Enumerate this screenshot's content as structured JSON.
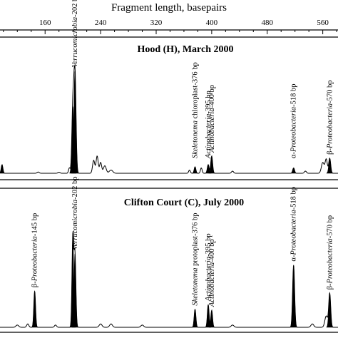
{
  "chart_data": {
    "type": "line",
    "xlabel": "Fragment length, basepairs",
    "xlim": [
      93,
      584
    ],
    "xticks": [
      160,
      240,
      320,
      400,
      480,
      560
    ],
    "ylabel": "",
    "panels": [
      {
        "title": "Hood (H), March 2000",
        "baseline": 0,
        "peaks": [
          {
            "x": 98,
            "h": 0.08,
            "w": 1.2,
            "fill": true
          },
          {
            "x": 150,
            "h": 0.012,
            "w": 1.5,
            "fill": false
          },
          {
            "x": 180,
            "h": 0.01,
            "w": 1.5,
            "fill": false
          },
          {
            "x": 195,
            "h": 0.05,
            "w": 1.2,
            "fill": false
          },
          {
            "x": 200,
            "h": 0.62,
            "w": 1.4,
            "fill": true
          },
          {
            "x": 203,
            "h": 0.95,
            "w": 1.5,
            "fill": true
          },
          {
            "x": 230,
            "h": 0.12,
            "w": 1.6,
            "fill": false
          },
          {
            "x": 235,
            "h": 0.16,
            "w": 1.5,
            "fill": false
          },
          {
            "x": 240,
            "h": 0.1,
            "w": 1.5,
            "fill": false
          },
          {
            "x": 246,
            "h": 0.07,
            "w": 2.0,
            "fill": false
          },
          {
            "x": 255,
            "h": 0.03,
            "w": 2.5,
            "fill": false
          },
          {
            "x": 368,
            "h": 0.03,
            "w": 1.2,
            "fill": false
          },
          {
            "x": 376,
            "h": 0.06,
            "w": 1.2,
            "fill": true
          },
          {
            "x": 385,
            "h": 0.05,
            "w": 1.2,
            "fill": false
          },
          {
            "x": 395,
            "h": 0.08,
            "w": 1.3,
            "fill": true
          },
          {
            "x": 400,
            "h": 0.16,
            "w": 1.3,
            "fill": true
          },
          {
            "x": 430,
            "h": 0.02,
            "w": 1.5,
            "fill": false
          },
          {
            "x": 518,
            "h": 0.05,
            "w": 1.3,
            "fill": true
          },
          {
            "x": 535,
            "h": 0.02,
            "w": 1.5,
            "fill": false
          },
          {
            "x": 560,
            "h": 0.1,
            "w": 2.0,
            "fill": false
          },
          {
            "x": 565,
            "h": 0.13,
            "w": 1.6,
            "fill": false
          },
          {
            "x": 570,
            "h": 0.14,
            "w": 1.4,
            "fill": true
          }
        ],
        "labels": [
          {
            "x": 203,
            "parts": [
              {
                "t": "Verrucomicrobia",
                "i": true
              },
              {
                "t": "-202 bp",
                "i": false
              }
            ]
          },
          {
            "x": 376,
            "parts": [
              {
                "t": "Skeletonema",
                "i": true
              },
              {
                "t": " chloroplast-376 bp",
                "i": false
              }
            ]
          },
          {
            "x": 395,
            "parts": [
              {
                "t": "Actinobacteria",
                "i": true
              },
              {
                "t": "-395 bp",
                "i": false
              }
            ]
          },
          {
            "x": 400,
            "parts": [
              {
                "t": "Actinobacteria",
                "i": true
              },
              {
                "t": "-400 bp",
                "i": false
              }
            ]
          },
          {
            "x": 518,
            "parts": [
              {
                "t": "α-",
                "i": false
              },
              {
                "t": "Proteobacteria",
                "i": true
              },
              {
                "t": "-518 bp",
                "i": false
              }
            ]
          },
          {
            "x": 570,
            "parts": [
              {
                "t": "β-",
                "i": false
              },
              {
                "t": "Proteobacteria",
                "i": true
              },
              {
                "t": "-570 bp",
                "i": false
              }
            ]
          }
        ]
      },
      {
        "title": "Clifton Court (C), July 2000",
        "baseline": 0,
        "peaks": [
          {
            "x": 120,
            "h": 0.02,
            "w": 2.0,
            "fill": false
          },
          {
            "x": 135,
            "h": 0.03,
            "w": 1.5,
            "fill": false
          },
          {
            "x": 145,
            "h": 0.32,
            "w": 1.2,
            "fill": true
          },
          {
            "x": 175,
            "h": 0.02,
            "w": 1.5,
            "fill": false
          },
          {
            "x": 200,
            "h": 0.8,
            "w": 1.2,
            "fill": true
          },
          {
            "x": 203,
            "h": 0.65,
            "w": 1.3,
            "fill": true
          },
          {
            "x": 240,
            "h": 0.03,
            "w": 2.0,
            "fill": false
          },
          {
            "x": 255,
            "h": 0.03,
            "w": 2.0,
            "fill": false
          },
          {
            "x": 300,
            "h": 0.02,
            "w": 2.0,
            "fill": false
          },
          {
            "x": 376,
            "h": 0.16,
            "w": 1.2,
            "fill": true
          },
          {
            "x": 395,
            "h": 0.2,
            "w": 1.2,
            "fill": true
          },
          {
            "x": 400,
            "h": 0.15,
            "w": 1.2,
            "fill": true
          },
          {
            "x": 430,
            "h": 0.02,
            "w": 2.0,
            "fill": false
          },
          {
            "x": 518,
            "h": 0.55,
            "w": 1.4,
            "fill": true
          },
          {
            "x": 545,
            "h": 0.03,
            "w": 2.0,
            "fill": false
          },
          {
            "x": 565,
            "h": 0.1,
            "w": 2.0,
            "fill": false
          },
          {
            "x": 570,
            "h": 0.3,
            "w": 1.4,
            "fill": true
          }
        ],
        "labels": [
          {
            "x": 145,
            "parts": [
              {
                "t": "β-",
                "i": false
              },
              {
                "t": "Proteobacteria",
                "i": true
              },
              {
                "t": "-145 bp",
                "i": false
              }
            ]
          },
          {
            "x": 203,
            "parts": [
              {
                "t": "Verrucomicrobia",
                "i": true
              },
              {
                "t": "-202 bp",
                "i": false
              }
            ]
          },
          {
            "x": 376,
            "parts": [
              {
                "t": "Skeletonema",
                "i": true
              },
              {
                "t": " protoplast-376 bp",
                "i": false
              }
            ]
          },
          {
            "x": 395,
            "parts": [
              {
                "t": "Actinobacteria",
                "i": true
              },
              {
                "t": "-395 bp",
                "i": false
              }
            ]
          },
          {
            "x": 400,
            "parts": [
              {
                "t": "Actinobacteria",
                "i": true
              },
              {
                "t": "-400 bp",
                "i": false
              }
            ]
          },
          {
            "x": 518,
            "parts": [
              {
                "t": "α-",
                "i": false
              },
              {
                "t": "Proteobacteria",
                "i": true
              },
              {
                "t": "-518 bp",
                "i": false
              }
            ]
          },
          {
            "x": 570,
            "parts": [
              {
                "t": "β-",
                "i": false
              },
              {
                "t": "Proteobacteria",
                "i": true
              },
              {
                "t": "-570 bp",
                "i": false
              }
            ]
          }
        ]
      }
    ],
    "colors": {
      "ink": "#000000",
      "background": "#ffffff"
    }
  }
}
